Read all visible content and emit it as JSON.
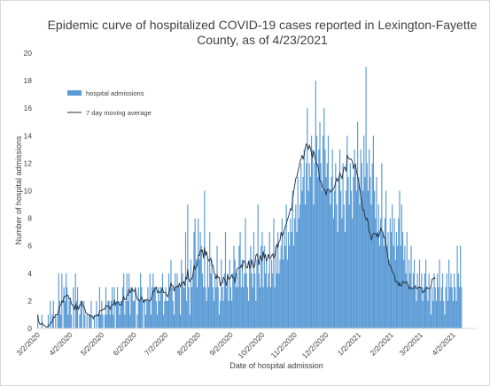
{
  "chart_data": {
    "type": "bar",
    "title_line1": "Epidemic curve of hospitalized COVID-19 cases reported in Lexington-Fayette",
    "title_line2": "County, as of 4/23/2021",
    "xlabel": "Date of hospital admission",
    "ylabel": "Number of hospital admissions",
    "ylim": [
      0,
      20
    ],
    "yticks": [
      0,
      2,
      4,
      6,
      8,
      10,
      12,
      14,
      16,
      18,
      20
    ],
    "x_start": "3/1/2020",
    "x_end": "4/23/2021",
    "xtick_labels": [
      "3/2/2020",
      "4/2/2020",
      "5/2/2020",
      "6/2/2020",
      "7/2/2020",
      "8/2/2020",
      "9/2/2020",
      "10/2/2020",
      "11/2/2020",
      "12/2/2020",
      "1/2/2021",
      "2/2/2021",
      "3/2/2021",
      "4/2/2021"
    ],
    "legend": {
      "bar_label": "hospital admissions",
      "line_label": "7 day moving average",
      "position": "top-left"
    },
    "grid": false,
    "colors": {
      "bar": "#5b9bd5",
      "line": "#1f2d3d",
      "text": "#404040",
      "axis": "#d9d9d9"
    },
    "values": [
      1,
      0,
      0,
      0,
      1,
      0,
      0,
      0,
      0,
      0,
      1,
      0,
      2,
      0,
      1,
      2,
      0,
      1,
      0,
      1,
      4,
      2,
      1,
      4,
      0,
      3,
      2,
      4,
      3,
      1,
      2,
      2,
      1,
      0,
      3,
      0,
      4,
      2,
      3,
      0,
      1,
      2,
      2,
      0,
      2,
      1,
      0,
      1,
      0,
      1,
      1,
      2,
      0,
      0,
      1,
      0,
      2,
      0,
      1,
      3,
      1,
      2,
      1,
      0,
      1,
      3,
      1,
      2,
      2,
      1,
      2,
      3,
      1,
      3,
      0,
      2,
      3,
      2,
      1,
      2,
      2,
      3,
      4,
      1,
      2,
      4,
      2,
      4,
      1,
      3,
      3,
      2,
      2,
      3,
      0,
      1,
      3,
      2,
      4,
      3,
      2,
      0,
      2,
      1,
      2,
      3,
      2,
      4,
      1,
      3,
      4,
      3,
      3,
      2,
      1,
      3,
      2,
      3,
      3,
      4,
      1,
      2,
      3,
      2,
      2,
      4,
      3,
      5,
      3,
      2,
      1,
      4,
      3,
      4,
      3,
      3,
      1,
      5,
      4,
      3,
      3,
      7,
      2,
      9,
      3,
      1,
      5,
      3,
      4,
      7,
      8,
      5,
      3,
      8,
      5,
      7,
      6,
      4,
      3,
      10,
      3,
      2,
      5,
      3,
      7,
      4,
      5,
      3,
      2,
      4,
      3,
      6,
      3,
      1,
      2,
      5,
      3,
      2,
      4,
      7,
      3,
      4,
      2,
      5,
      3,
      2,
      4,
      6,
      5,
      3,
      4,
      3,
      6,
      7,
      3,
      5,
      3,
      4,
      8,
      4,
      3,
      2,
      5,
      6,
      4,
      3,
      7,
      4,
      2,
      5,
      9,
      4,
      3,
      6,
      7,
      3,
      6,
      4,
      5,
      3,
      4,
      7,
      3,
      5,
      4,
      8,
      3,
      6,
      4,
      7,
      4,
      5,
      6,
      8,
      5,
      7,
      6,
      9,
      5,
      7,
      6,
      8,
      7,
      10,
      6,
      8,
      9,
      7,
      11,
      8,
      9,
      12,
      10,
      11,
      13,
      9,
      12,
      16,
      10,
      12,
      11,
      14,
      13,
      9,
      12,
      18,
      14,
      11,
      13,
      15,
      12,
      10,
      14,
      16,
      13,
      11,
      12,
      14,
      10,
      9,
      11,
      13,
      8,
      10,
      12,
      9,
      7,
      11,
      13,
      10,
      8,
      12,
      9,
      7,
      10,
      14,
      11,
      9,
      12,
      10,
      8,
      11,
      13,
      12,
      10,
      15,
      11,
      9,
      13,
      12,
      10,
      14,
      11,
      19,
      12,
      10,
      13,
      11,
      9,
      12,
      14,
      10,
      8,
      11,
      7,
      9,
      6,
      8,
      12,
      7,
      6,
      8,
      10,
      6,
      7,
      5,
      8,
      7,
      9,
      6,
      8,
      5,
      7,
      6,
      8,
      10,
      6,
      9,
      7,
      5,
      6,
      4,
      7,
      3,
      5,
      4,
      6,
      3,
      4,
      5,
      3,
      2,
      4,
      3,
      5,
      3,
      4,
      2,
      3,
      4,
      5,
      3,
      2,
      4,
      3,
      1,
      3,
      2,
      4,
      3,
      2,
      4,
      3,
      5,
      2,
      3,
      4,
      2,
      1,
      3,
      4,
      2,
      5,
      3,
      4,
      3,
      2,
      4,
      3,
      2,
      6,
      4,
      3,
      6,
      3
    ],
    "moving_average": [
      1,
      0.5,
      0.3,
      0.3,
      0.4,
      0.3,
      0.2,
      0.2,
      0.1,
      0.1,
      0.2,
      0.2,
      0.4,
      0.4,
      0.6,
      0.8,
      0.8,
      1,
      1,
      1,
      1.4,
      1.6,
      1.7,
      2,
      1.9,
      2.3,
      2.3,
      2.4,
      2.4,
      2.4,
      2.1,
      2.2,
      1.8,
      1.7,
      1.6,
      1.4,
      1.8,
      1.4,
      1.6,
      1.4,
      1.7,
      1.7,
      2,
      1.6,
      1.6,
      1.4,
      1.1,
      1.1,
      1,
      1,
      0.9,
      0.9,
      0.9,
      0.7,
      0.9,
      0.9,
      0.9,
      1,
      0.9,
      1.3,
      1.3,
      1.3,
      1.4,
      1.4,
      1.4,
      1.7,
      1.6,
      1.6,
      1.6,
      1.4,
      1.6,
      1.7,
      1.7,
      2.1,
      1.7,
      1.9,
      1.9,
      1.9,
      1.7,
      1.7,
      1.7,
      2.1,
      2.3,
      2.1,
      2.1,
      2.4,
      2.4,
      2.9,
      2.6,
      2.7,
      2.9,
      2.7,
      2.7,
      2.9,
      2.4,
      2.1,
      2.1,
      2,
      2.1,
      2.3,
      2.1,
      1.9,
      2.1,
      2,
      2.1,
      2.1,
      2,
      2,
      2.1,
      2.4,
      2.7,
      2.7,
      2.9,
      3,
      2.6,
      2.7,
      2.6,
      2.6,
      2.7,
      2.9,
      2.6,
      2.6,
      2.6,
      2.4,
      2.3,
      2.6,
      2.9,
      3.3,
      3.1,
      3.1,
      2.7,
      3,
      3,
      3.1,
      3,
      3.3,
      3,
      3.3,
      3.3,
      3.4,
      3.1,
      3.7,
      3.6,
      4.3,
      3.6,
      3.4,
      3.6,
      3.6,
      3.9,
      4.6,
      4.3,
      4.4,
      4.6,
      5.3,
      5.3,
      5.7,
      5.6,
      5.7,
      5.1,
      5.9,
      5.3,
      5.6,
      5.1,
      4.9,
      5,
      5.1,
      4.6,
      4.6,
      4.1,
      3.9,
      3.6,
      3.9,
      3.7,
      3.7,
      3.1,
      3.3,
      3.3,
      3.7,
      3.6,
      3.4,
      3.1,
      3.9,
      3.6,
      3.6,
      3.7,
      3.9,
      3.7,
      3.7,
      3.3,
      3.9,
      4.3,
      4.4,
      4.4,
      4.4,
      4.6,
      4.4,
      4.9,
      4.9,
      4.7,
      4.4,
      4.4,
      4.9,
      4.4,
      4.4,
      5,
      4.6,
      4.4,
      4.6,
      5.3,
      5.4,
      5.1,
      4.6,
      5.3,
      5.1,
      4.9,
      5.6,
      5.1,
      5.4,
      4.9,
      5.1,
      5.4,
      5.1,
      5.1,
      5.3,
      5.4,
      5.1,
      5.3,
      5.7,
      6.1,
      5.9,
      6.3,
      6.4,
      7,
      6.7,
      6.9,
      7.1,
      7.4,
      7.6,
      7.9,
      8.1,
      8.4,
      8.7,
      8.6,
      9.4,
      9.9,
      10.4,
      10.9,
      11,
      11.4,
      11.7,
      12.1,
      12.3,
      12.6,
      12.3,
      12.6,
      13.1,
      13.4,
      13.3,
      13,
      13.3,
      13.1,
      12.7,
      12.4,
      12.9,
      12.6,
      12.1,
      11.9,
      11.9,
      11.3,
      10.7,
      10.7,
      10.4,
      10.1,
      10.1,
      10,
      9.7,
      10.1,
      10.1,
      10.1,
      9.9,
      10,
      10.1,
      10.1,
      10.3,
      10.6,
      10.9,
      10.7,
      10.9,
      11.3,
      11.1,
      10.9,
      11.3,
      11.7,
      11.7,
      11.4,
      12.6,
      12.4,
      12.3,
      12.3,
      12.3,
      12.1,
      11.6,
      11.9,
      11.9,
      11.4,
      11,
      10.7,
      10.1,
      9.6,
      9.1,
      8.6,
      8.6,
      8.1,
      7.9,
      8,
      7.7,
      7,
      6.9,
      6.4,
      6.7,
      6.9,
      6.9,
      6.9,
      6.7,
      6.9,
      6.6,
      6.9,
      7.3,
      7.1,
      7,
      6.6,
      6.6,
      6,
      5.6,
      5.1,
      4.6,
      4.6,
      4.4,
      4.1,
      4,
      3.9,
      3.4,
      3.4,
      3.4,
      3.1,
      3.3,
      3.1,
      3.1,
      3.4,
      3.4,
      3.3,
      3.3,
      3.4,
      3.1,
      2.9,
      3,
      2.9,
      2.9,
      2.9,
      3,
      3.1,
      2.9,
      2.9,
      3,
      3,
      3,
      2.9,
      2.6,
      2.7,
      2.7,
      2.9,
      3,
      2.9,
      2.9,
      2.9,
      3.1,
      3.6,
      3.6,
      3.7,
      3.6
    ]
  }
}
